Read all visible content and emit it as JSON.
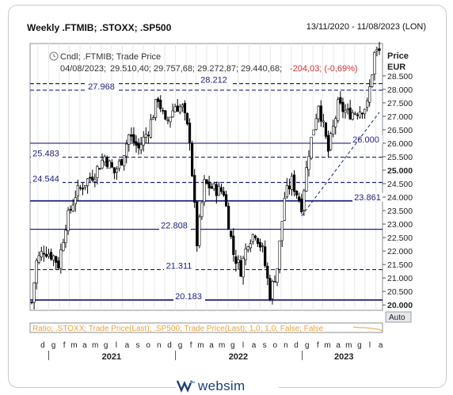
{
  "header": {
    "title": "Weekly .FTMIB; .STOXX; .SP500",
    "date_range": "13/11/2020 - 11/08/2023 (LON)"
  },
  "legend": {
    "line1": "Cndl; .FTMIB; Trade Price",
    "date": "04/08/2023;",
    "ohlc": "29.510,40; 29.757,68; 29.272,87; 29.440,68;",
    "change": "-204,03; (-0,69%)"
  },
  "axis": {
    "price_label": "Price",
    "currency_label": "EUR",
    "auto_label": "Auto",
    "ticks": [
      "28.500",
      "28.000",
      "27.500",
      "27.000",
      "26.500",
      "26.000",
      "25.500",
      "25.000",
      "24.500",
      "24.000",
      "23.500",
      "23.000",
      "22.500",
      "22.000",
      "21.500",
      "21.000",
      "20.500",
      "20.000"
    ],
    "month_labels": [
      "d",
      "g",
      "f",
      "m",
      "a",
      "m",
      "g",
      "l",
      "a",
      "s",
      "o",
      "n",
      "d",
      "g",
      "f",
      "m",
      "a",
      "m",
      "g",
      "l",
      "a",
      "s",
      "o",
      "n",
      "d",
      "g",
      "f",
      "m",
      "a",
      "m",
      "g",
      "l",
      "a"
    ],
    "years": [
      "2021",
      "2022",
      "2023"
    ]
  },
  "ratio_panel": {
    "label": "Ratio; .STOXX; Trade Price(Last); .SP500; Trade Price(Last);  1,0; 1,0; False; False"
  },
  "brand": {
    "name": "websim"
  },
  "colors": {
    "line_level": "#1a237e",
    "label_blue": "#1a237e",
    "negative": "#d32f2f",
    "ratio_orange": "#e8a23c",
    "candle": "#000000"
  },
  "chart_data": {
    "type": "candlestick",
    "title": "Weekly .FTMIB; .STOXX; .SP500",
    "ylabel": "Price EUR",
    "ylim": [
      19800,
      29700
    ],
    "x_range": [
      "2020-11-13",
      "2023-08-11"
    ],
    "levels": [
      {
        "value": 28212,
        "label": "28.212",
        "style": "dashed"
      },
      {
        "value": 27968,
        "label": "27.968",
        "style": "dashed"
      },
      {
        "value": 26000,
        "label": "26.000",
        "style": "solid"
      },
      {
        "value": 25483,
        "label": "25.483",
        "style": "dashed"
      },
      {
        "value": 24544,
        "label": "24.544",
        "style": "dashed"
      },
      {
        "value": 23861,
        "label": "23.861",
        "style": "solid-bold"
      },
      {
        "value": 22808,
        "label": "22.808",
        "style": "solid"
      },
      {
        "value": 21311,
        "label": "21.311",
        "style": "dashed"
      },
      {
        "value": 20183,
        "label": "20.183",
        "style": "solid-bold"
      }
    ],
    "trendline": {
      "from": {
        "date": "2022-12-30",
        "value": 23300
      },
      "to": {
        "date": "2023-08-11",
        "value": 27150
      },
      "style": "dashed"
    },
    "last": {
      "date": "2023-08-04",
      "open": 29510.4,
      "high": 29757.68,
      "low": 29272.87,
      "close": 29440.68
    },
    "close_path": [
      [
        "2020-11-13",
        20100
      ],
      [
        "2020-11-27",
        21600
      ],
      [
        "2020-12-18",
        22050
      ],
      [
        "2021-01-15",
        21800
      ],
      [
        "2021-01-29",
        21500
      ],
      [
        "2021-02-19",
        23000
      ],
      [
        "2021-03-19",
        24100
      ],
      [
        "2021-04-16",
        24550
      ],
      [
        "2021-05-14",
        24900
      ],
      [
        "2021-06-11",
        25500
      ],
      [
        "2021-07-09",
        24900
      ],
      [
        "2021-07-30",
        25400
      ],
      [
        "2021-08-20",
        26300
      ],
      [
        "2021-09-17",
        25800
      ],
      [
        "2021-10-15",
        26500
      ],
      [
        "2021-11-12",
        27700
      ],
      [
        "2021-12-03",
        26700
      ],
      [
        "2021-12-31",
        27400
      ],
      [
        "2022-01-21",
        27300
      ],
      [
        "2022-02-11",
        26200
      ],
      [
        "2022-03-04",
        22300
      ],
      [
        "2022-03-25",
        24500
      ],
      [
        "2022-04-22",
        24300
      ],
      [
        "2022-05-20",
        24200
      ],
      [
        "2022-06-17",
        21900
      ],
      [
        "2022-07-08",
        21300
      ],
      [
        "2022-07-29",
        22400
      ],
      [
        "2022-08-19",
        22700
      ],
      [
        "2022-09-09",
        22000
      ],
      [
        "2022-09-30",
        20400
      ],
      [
        "2022-10-21",
        21400
      ],
      [
        "2022-11-11",
        24000
      ],
      [
        "2022-12-02",
        24600
      ],
      [
        "2022-12-30",
        23700
      ],
      [
        "2023-01-20",
        25700
      ],
      [
        "2023-02-17",
        27500
      ],
      [
        "2023-03-17",
        25700
      ],
      [
        "2023-04-14",
        27400
      ],
      [
        "2023-05-12",
        27100
      ],
      [
        "2023-06-09",
        27200
      ],
      [
        "2023-07-07",
        27400
      ],
      [
        "2023-07-28",
        29300
      ],
      [
        "2023-08-11",
        29440
      ]
    ]
  }
}
